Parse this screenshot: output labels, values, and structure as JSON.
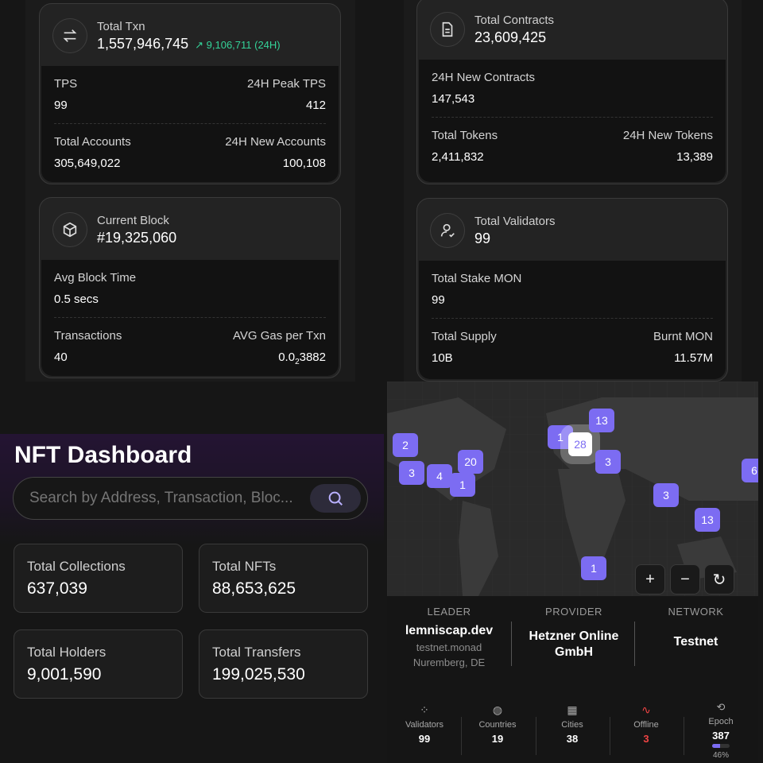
{
  "left_card1": {
    "label": "Total Txn",
    "value": "1,557,946,745",
    "delta": "9,106,711 (24H)",
    "rows": [
      {
        "k1": "TPS",
        "v1": "99",
        "k2": "24H Peak TPS",
        "v2": "412"
      },
      {
        "k1": "Total Accounts",
        "v1": "305,649,022",
        "k2": "24H New Accounts",
        "v2": "100,108"
      }
    ]
  },
  "left_card2": {
    "label": "Current Block",
    "value": "#19,325,060",
    "rows": [
      {
        "k1": "Avg Block Time",
        "v1": "0.5 secs"
      },
      {
        "k1": "Transactions",
        "v1": "40",
        "k2": "AVG Gas per Txn",
        "v2_base": "0.0",
        "v2_sub": "2",
        "v2_rest": "3882"
      }
    ]
  },
  "right_card1": {
    "label": "Total Contracts",
    "value": "23,609,425",
    "rows": [
      {
        "k1": "24H New Contracts",
        "v1": "147,543"
      },
      {
        "k1": "Total Tokens",
        "v1": "2,411,832",
        "k2": "24H New Tokens",
        "v2": "13,389"
      }
    ]
  },
  "right_card2": {
    "label": "Total Validators",
    "value": "99",
    "rows": [
      {
        "k1": "Total Stake MON",
        "v1": "99"
      },
      {
        "k1": "Total Supply",
        "v1": "10B",
        "k2": "Burnt MON",
        "v2": "11.57M"
      }
    ]
  },
  "nft": {
    "title": "NFT Dashboard",
    "search_placeholder": "Search by Address, Transaction, Bloc...",
    "stats": [
      {
        "label": "Total Collections",
        "value": "637,039"
      },
      {
        "label": "Total NFTs",
        "value": "88,653,625"
      },
      {
        "label": "Total Holders",
        "value": "9,001,590"
      },
      {
        "label": "Total Transfers",
        "value": "199,025,530"
      }
    ]
  },
  "map": {
    "clusters": [
      "2",
      "3",
      "4",
      "20",
      "1",
      "1",
      "28",
      "13",
      "3",
      "3",
      "13",
      "1",
      "6"
    ],
    "controls": {
      "zoom_in": "+",
      "zoom_out": "−",
      "reset": "↻"
    }
  },
  "node_info": {
    "leader_cap": "LEADER",
    "leader": "lemniscap.dev",
    "leader_host": "testnet.monad",
    "leader_loc": "Nuremberg, DE",
    "provider_cap": "PROVIDER",
    "provider": "Hetzner Online GmbH",
    "network_cap": "NETWORK",
    "network": "Testnet"
  },
  "footer_stats": [
    {
      "label": "Validators",
      "value": "99"
    },
    {
      "label": "Countries",
      "value": "19"
    },
    {
      "label": "Cities",
      "value": "38"
    },
    {
      "label": "Offline",
      "value": "3"
    },
    {
      "label": "Epoch",
      "value": "387",
      "progress_label": "46%"
    }
  ],
  "colors": {
    "accent": "#7c6cf2",
    "positive": "#34d399",
    "offline": "#ef4444"
  },
  "epoch_progress": 0.46
}
